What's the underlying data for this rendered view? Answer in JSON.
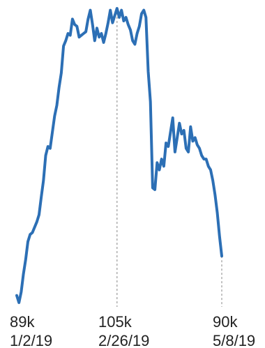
{
  "chart_data": {
    "type": "line",
    "color": "#2c6fb5",
    "annotations": [
      {
        "value": "89k",
        "date": "1/2/19"
      },
      {
        "value": "105k",
        "date": "2/26/19"
      },
      {
        "value": "90k",
        "date": "5/8/19"
      }
    ],
    "series": [
      {
        "values": [
          89.0,
          88.6,
          89.2,
          90.2,
          91.0,
          92.0,
          92.4,
          92.5,
          92.8,
          93.1,
          93.5,
          94.5,
          95.4,
          96.8,
          97.3,
          97.2,
          98.1,
          99.0,
          99.6,
          100.6,
          101.4,
          102.9,
          103.2,
          103.6,
          103.5,
          104.4,
          104.1,
          104.0,
          103.4,
          103.5,
          103.6,
          103.7,
          104.4,
          104.9,
          104.1,
          103.2,
          103.9,
          103.4,
          103.6,
          103.1,
          103.6,
          104.2,
          104.9,
          104.2,
          104.6,
          105.0,
          104.5,
          104.9,
          104.3,
          104.5,
          104.1,
          103.8,
          103.2,
          103.0,
          103.6,
          104.0,
          104.7,
          104.9,
          104.5,
          101.5,
          99.8,
          95.0,
          94.9,
          96.4,
          96.0,
          96.6,
          96.2,
          97.5,
          97.3,
          98.1,
          98.9,
          97.0,
          97.8,
          98.6,
          98.0,
          98.2,
          97.2,
          97.0,
          98.4,
          97.6,
          97.8,
          97.4,
          97.2,
          96.8,
          96.6,
          96.6,
          96.2,
          96.0,
          95.4,
          94.6,
          93.6,
          92.3,
          91.2
        ]
      }
    ]
  }
}
